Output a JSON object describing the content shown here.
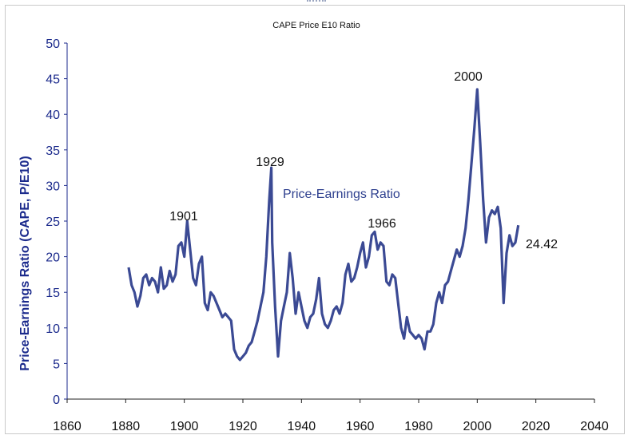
{
  "chart_data": {
    "type": "line",
    "title": "CAPE Price E10 Ratio",
    "xlabel": "",
    "ylabel": "Price-Earnings Ratio (CAPE, P/E10)",
    "xlim": [
      1860,
      2040
    ],
    "ylim": [
      0,
      50
    ],
    "xticks": [
      1860,
      1880,
      1900,
      1920,
      1940,
      1960,
      1980,
      2000,
      2020,
      2040
    ],
    "yticks": [
      0,
      5,
      10,
      15,
      20,
      25,
      30,
      35,
      40,
      45,
      50
    ],
    "grid": false,
    "colors": {
      "line": "#3b4a94",
      "axis": "#1b2a8c"
    },
    "series": [
      {
        "name": "Price-Earnings Ratio",
        "x": [
          1881,
          1882,
          1883,
          1884,
          1885,
          1886,
          1887,
          1888,
          1889,
          1890,
          1891,
          1892,
          1893,
          1894,
          1895,
          1896,
          1897,
          1898,
          1899,
          1900,
          1901,
          1902,
          1903,
          1904,
          1905,
          1906,
          1907,
          1908,
          1909,
          1910,
          1911,
          1912,
          1913,
          1914,
          1915,
          1916,
          1917,
          1918,
          1919,
          1920,
          1921,
          1922,
          1923,
          1924,
          1925,
          1926,
          1927,
          1928,
          1929,
          1929.7,
          1930,
          1931,
          1932,
          1933,
          1934,
          1935,
          1936,
          1937,
          1938,
          1939,
          1940,
          1941,
          1942,
          1943,
          1944,
          1945,
          1946,
          1947,
          1948,
          1949,
          1950,
          1951,
          1952,
          1953,
          1954,
          1955,
          1956,
          1957,
          1958,
          1959,
          1960,
          1961,
          1962,
          1963,
          1964,
          1965,
          1966,
          1967,
          1968,
          1969,
          1970,
          1971,
          1972,
          1973,
          1974,
          1975,
          1976,
          1977,
          1978,
          1979,
          1980,
          1981,
          1982,
          1983,
          1984,
          1985,
          1986,
          1987,
          1988,
          1989,
          1990,
          1991,
          1992,
          1993,
          1994,
          1995,
          1996,
          1997,
          1998,
          1999,
          2000,
          2001,
          2002,
          2003,
          2004,
          2005,
          2006,
          2007,
          2008,
          2009,
          2010,
          2011,
          2012,
          2013,
          2014
        ],
        "y": [
          18.5,
          16.0,
          15.0,
          13.0,
          14.5,
          17.0,
          17.5,
          16.0,
          17.0,
          16.5,
          15.0,
          18.5,
          15.5,
          16.0,
          18.0,
          16.5,
          17.5,
          21.5,
          22.0,
          20.0,
          25.0,
          21.0,
          17.0,
          16.0,
          19.0,
          20.0,
          13.5,
          12.5,
          15.0,
          14.5,
          13.5,
          12.5,
          11.5,
          12.0,
          11.5,
          11.0,
          7.0,
          6.0,
          5.5,
          6.0,
          6.5,
          7.5,
          8.0,
          9.5,
          11.0,
          13.0,
          15.0,
          20.0,
          28.0,
          32.5,
          22.0,
          13.0,
          6.0,
          11.0,
          13.0,
          15.0,
          20.5,
          17.0,
          12.0,
          15.0,
          13.0,
          11.0,
          10.0,
          11.5,
          12.0,
          14.0,
          17.0,
          12.0,
          10.5,
          10.0,
          11.0,
          12.5,
          13.0,
          12.0,
          13.5,
          17.5,
          19.0,
          16.5,
          17.0,
          18.5,
          20.5,
          22.0,
          18.5,
          20.0,
          23.0,
          23.5,
          21.0,
          22.0,
          21.5,
          16.5,
          16.0,
          17.5,
          17.0,
          13.5,
          10.0,
          8.5,
          11.5,
          9.5,
          9.0,
          8.5,
          9.0,
          8.5,
          7.0,
          9.5,
          9.5,
          10.5,
          13.5,
          15.0,
          13.5,
          16.0,
          16.5,
          18.0,
          19.5,
          21.0,
          20.0,
          21.5,
          24.0,
          28.0,
          33.0,
          38.0,
          43.5,
          36.0,
          28.0,
          22.0,
          25.5,
          26.5,
          26.0,
          27.0,
          24.0,
          13.5,
          20.5,
          23.0,
          21.5,
          22.0,
          24.42
        ]
      }
    ],
    "annotations": [
      "1901",
      "1929",
      "1966",
      "2000",
      "24.42"
    ],
    "series_label": "Price-Earnings Ratio"
  }
}
